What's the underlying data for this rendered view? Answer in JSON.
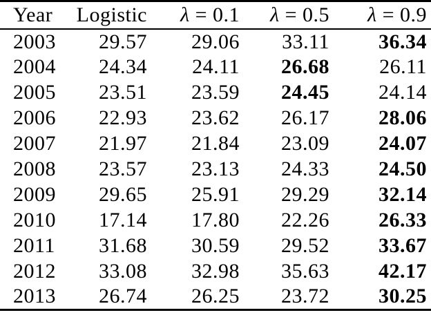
{
  "table": {
    "headers": [
      "Year",
      "Logistic",
      "λ = 0.1",
      "λ = 0.5",
      "λ = 0.9"
    ],
    "rows": [
      {
        "year": "2003",
        "values": [
          "29.57",
          "29.06",
          "33.11",
          "36.34"
        ],
        "bold": 3
      },
      {
        "year": "2004",
        "values": [
          "24.34",
          "24.11",
          "26.68",
          "26.11"
        ],
        "bold": 2
      },
      {
        "year": "2005",
        "values": [
          "23.51",
          "23.59",
          "24.45",
          "24.14"
        ],
        "bold": 2
      },
      {
        "year": "2006",
        "values": [
          "22.93",
          "23.62",
          "26.17",
          "28.06"
        ],
        "bold": 3
      },
      {
        "year": "2007",
        "values": [
          "21.97",
          "21.84",
          "23.09",
          "24.07"
        ],
        "bold": 3
      },
      {
        "year": "2008",
        "values": [
          "23.57",
          "23.13",
          "24.33",
          "24.50"
        ],
        "bold": 3
      },
      {
        "year": "2009",
        "values": [
          "29.65",
          "25.91",
          "29.29",
          "32.14"
        ],
        "bold": 3
      },
      {
        "year": "2010",
        "values": [
          "17.14",
          "17.80",
          "22.26",
          "26.33"
        ],
        "bold": 3
      },
      {
        "year": "2011",
        "values": [
          "31.68",
          "30.59",
          "29.52",
          "33.67"
        ],
        "bold": 3
      },
      {
        "year": "2012",
        "values": [
          "33.08",
          "32.98",
          "35.63",
          "42.17"
        ],
        "bold": 3
      },
      {
        "year": "2013",
        "values": [
          "26.74",
          "26.25",
          "23.72",
          "30.25"
        ],
        "bold": 3
      }
    ],
    "colors": {
      "text": "#000000",
      "background": "#ffffff",
      "rule": "#000000"
    }
  }
}
